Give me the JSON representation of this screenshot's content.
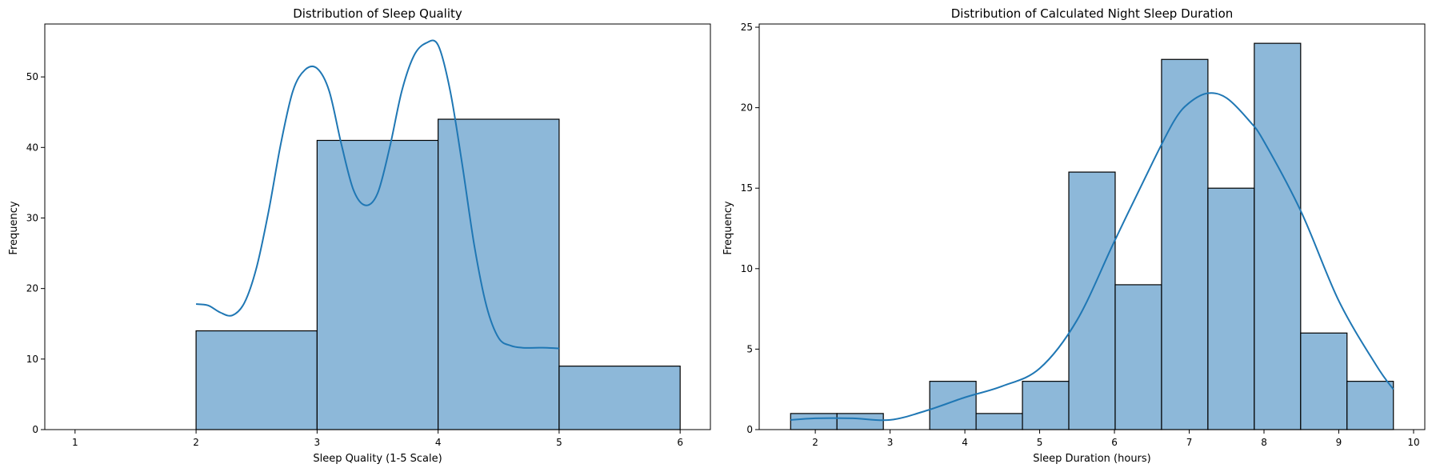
{
  "colors": {
    "bar_fill": "#8db8d9",
    "bar_edge": "#000000",
    "kde_line": "#1f77b4"
  },
  "chart_data": [
    {
      "type": "bar",
      "histogram": true,
      "kde": true,
      "title": "Distribution of Sleep Quality",
      "xlabel": "Sleep Quality (1-5 Scale)",
      "ylabel": "Frequency",
      "xlim": [
        0.75,
        6.25
      ],
      "ylim": [
        0,
        57.5
      ],
      "xticks": [
        1,
        2,
        3,
        4,
        5,
        6
      ],
      "yticks": [
        0,
        10,
        20,
        30,
        40,
        50
      ],
      "bins": [
        {
          "x0": 2,
          "x1": 3,
          "count": 14
        },
        {
          "x0": 3,
          "x1": 4,
          "count": 41
        },
        {
          "x0": 4,
          "x1": 5,
          "count": 44
        },
        {
          "x0": 5,
          "x1": 6,
          "count": 9
        }
      ],
      "kde_curve": {
        "x": [
          2.0,
          2.1,
          2.2,
          2.3,
          2.4,
          2.5,
          2.6,
          2.7,
          2.8,
          2.9,
          3.0,
          3.1,
          3.2,
          3.3,
          3.4,
          3.5,
          3.6,
          3.7,
          3.8,
          3.9,
          4.0,
          4.1,
          4.2,
          4.3,
          4.4,
          4.5,
          4.6,
          4.7,
          4.8,
          4.9,
          5.0
        ],
        "y": [
          17.8,
          17.6,
          16.6,
          16.2,
          18.0,
          23.0,
          31.0,
          40.5,
          48.0,
          51.0,
          51.2,
          48.0,
          40.5,
          34.0,
          31.8,
          33.5,
          40.0,
          48.0,
          53.0,
          54.8,
          54.5,
          48.0,
          37.5,
          26.0,
          17.5,
          13.0,
          11.9,
          11.6,
          11.6,
          11.6,
          11.5
        ]
      }
    },
    {
      "type": "bar",
      "histogram": true,
      "kde": true,
      "title": "Distribution of Calculated Night Sleep Duration",
      "xlabel": "Sleep Duration (hours)",
      "ylabel": "Frequency",
      "xlim": [
        1.25,
        10.15
      ],
      "ylim": [
        0,
        25.2
      ],
      "xticks": [
        2,
        3,
        4,
        5,
        6,
        7,
        8,
        9,
        10
      ],
      "yticks": [
        0,
        5,
        10,
        15,
        20,
        25
      ],
      "bins": [
        {
          "x0": 1.67,
          "x1": 2.29,
          "count": 1
        },
        {
          "x0": 2.29,
          "x1": 2.91,
          "count": 1
        },
        {
          "x0": 2.91,
          "x1": 3.53,
          "count": 0
        },
        {
          "x0": 3.53,
          "x1": 4.15,
          "count": 3
        },
        {
          "x0": 4.15,
          "x1": 4.77,
          "count": 1
        },
        {
          "x0": 4.77,
          "x1": 5.39,
          "count": 3
        },
        {
          "x0": 5.39,
          "x1": 6.01,
          "count": 16
        },
        {
          "x0": 6.01,
          "x1": 6.63,
          "count": 9
        },
        {
          "x0": 6.63,
          "x1": 7.25,
          "count": 23
        },
        {
          "x0": 7.25,
          "x1": 7.87,
          "count": 15
        },
        {
          "x0": 7.87,
          "x1": 8.49,
          "count": 24
        },
        {
          "x0": 8.49,
          "x1": 9.11,
          "count": 6
        },
        {
          "x0": 9.11,
          "x1": 9.73,
          "count": 3
        }
      ],
      "kde_curve": {
        "x": [
          1.67,
          2.0,
          2.5,
          3.0,
          3.5,
          4.0,
          4.5,
          5.0,
          5.5,
          6.0,
          6.5,
          6.8,
          7.0,
          7.25,
          7.5,
          7.8,
          8.0,
          8.5,
          9.0,
          9.5,
          9.73
        ],
        "y": [
          0.6,
          0.7,
          0.7,
          0.6,
          1.2,
          2.0,
          2.7,
          3.8,
          6.8,
          11.7,
          16.5,
          19.2,
          20.3,
          20.9,
          20.6,
          19.2,
          17.9,
          13.5,
          8.0,
          4.0,
          2.5
        ]
      }
    }
  ]
}
